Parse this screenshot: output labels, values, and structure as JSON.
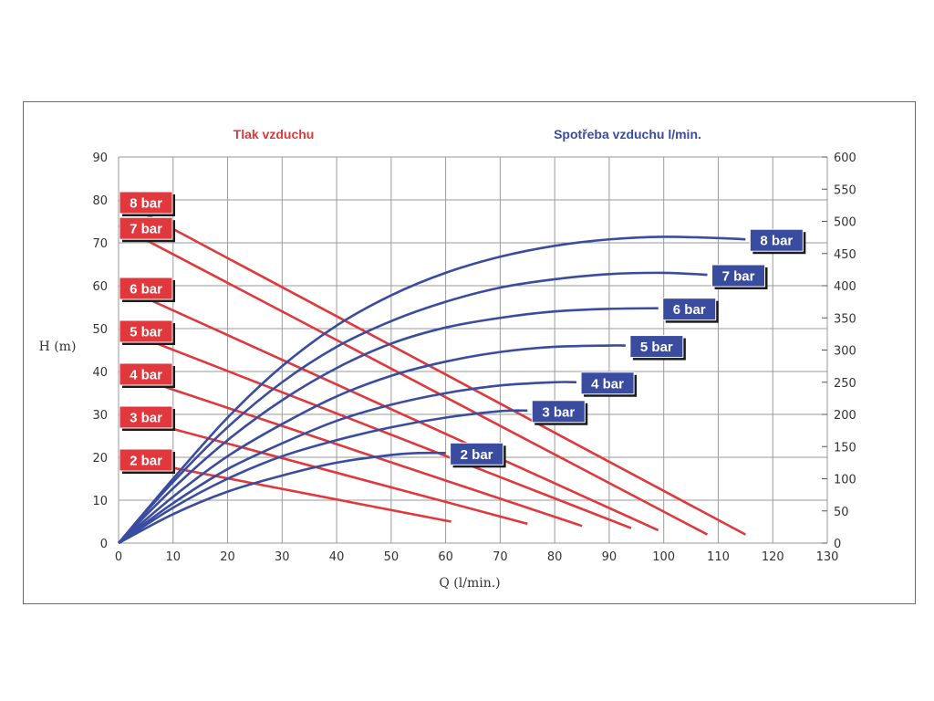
{
  "chart_data": {
    "type": "line",
    "header_left": "Tlak vzduchu",
    "header_right": "Spotřeba vzduchu l/min.",
    "xlabel": "Q (l/min.)",
    "ylabel": "H (m)",
    "xlim": [
      0,
      130
    ],
    "ylim_left": [
      0,
      90
    ],
    "ylim_right": [
      0,
      600
    ],
    "x_ticks": [
      0,
      10,
      20,
      30,
      40,
      50,
      60,
      70,
      80,
      90,
      100,
      110,
      120,
      130
    ],
    "y_left_ticks": [
      0,
      10,
      20,
      30,
      40,
      50,
      60,
      70,
      80,
      90
    ],
    "y_right_ticks": [
      0,
      50,
      100,
      150,
      200,
      250,
      300,
      350,
      400,
      450,
      500,
      550,
      600
    ],
    "grid": true,
    "colors": {
      "head": "#e0383c",
      "consumption": "#3a4ca0",
      "frame": "#e0383c"
    },
    "head_series": [
      {
        "name": "2 bar",
        "x": [
          0,
          61
        ],
        "h": [
          20,
          5
        ]
      },
      {
        "name": "3 bar",
        "x": [
          0,
          75
        ],
        "h": [
          30,
          4.5
        ]
      },
      {
        "name": "4 bar",
        "x": [
          0,
          85
        ],
        "h": [
          40,
          4
        ]
      },
      {
        "name": "5 bar",
        "x": [
          0,
          94
        ],
        "h": [
          50,
          3.5
        ]
      },
      {
        "name": "6 bar",
        "x": [
          0,
          99
        ],
        "h": [
          60,
          3
        ]
      },
      {
        "name": "7 bar",
        "x": [
          0,
          108
        ],
        "h": [
          74,
          2
        ]
      },
      {
        "name": "8 bar",
        "x": [
          0,
          115
        ],
        "h": [
          80,
          2
        ]
      }
    ],
    "consumption_series": [
      {
        "name": "2 bar",
        "x": [
          0,
          10,
          20,
          30,
          40,
          50,
          55,
          60
        ],
        "y": [
          0,
          45,
          80,
          105,
          125,
          137,
          140,
          140
        ]
      },
      {
        "name": "3 bar",
        "x": [
          0,
          10,
          20,
          30,
          40,
          50,
          60,
          70,
          75
        ],
        "y": [
          0,
          55,
          100,
          135,
          160,
          180,
          195,
          205,
          206
        ]
      },
      {
        "name": "4 bar",
        "x": [
          0,
          10,
          20,
          30,
          40,
          50,
          60,
          70,
          80,
          84
        ],
        "y": [
          0,
          62,
          115,
          155,
          190,
          215,
          233,
          245,
          250,
          250
        ]
      },
      {
        "name": "5 bar",
        "x": [
          0,
          10,
          20,
          30,
          40,
          50,
          60,
          70,
          80,
          90,
          93
        ],
        "y": [
          0,
          72,
          135,
          185,
          228,
          260,
          282,
          297,
          305,
          307,
          307
        ]
      },
      {
        "name": "6 bar",
        "x": [
          0,
          10,
          20,
          30,
          40,
          50,
          60,
          70,
          80,
          90,
          99
        ],
        "y": [
          0,
          85,
          160,
          222,
          272,
          310,
          335,
          350,
          360,
          364,
          365
        ]
      },
      {
        "name": "7 bar",
        "x": [
          0,
          10,
          20,
          30,
          40,
          50,
          60,
          70,
          80,
          90,
          100,
          108
        ],
        "y": [
          0,
          95,
          180,
          250,
          305,
          345,
          375,
          397,
          410,
          418,
          420,
          417
        ]
      },
      {
        "name": "8 bar",
        "x": [
          0,
          10,
          20,
          30,
          40,
          50,
          60,
          70,
          80,
          90,
          100,
          110,
          115
        ],
        "y": [
          0,
          100,
          195,
          275,
          338,
          385,
          420,
          445,
          462,
          472,
          476,
          474,
          472
        ]
      }
    ],
    "head_badges": [
      "8 bar",
      "7 bar",
      "6 bar",
      "5 bar",
      "4 bar",
      "3 bar",
      "2 bar"
    ],
    "consumption_badges": [
      "8 bar",
      "7 bar",
      "6 bar",
      "5 bar",
      "4 bar",
      "3 bar",
      "2 bar"
    ]
  }
}
